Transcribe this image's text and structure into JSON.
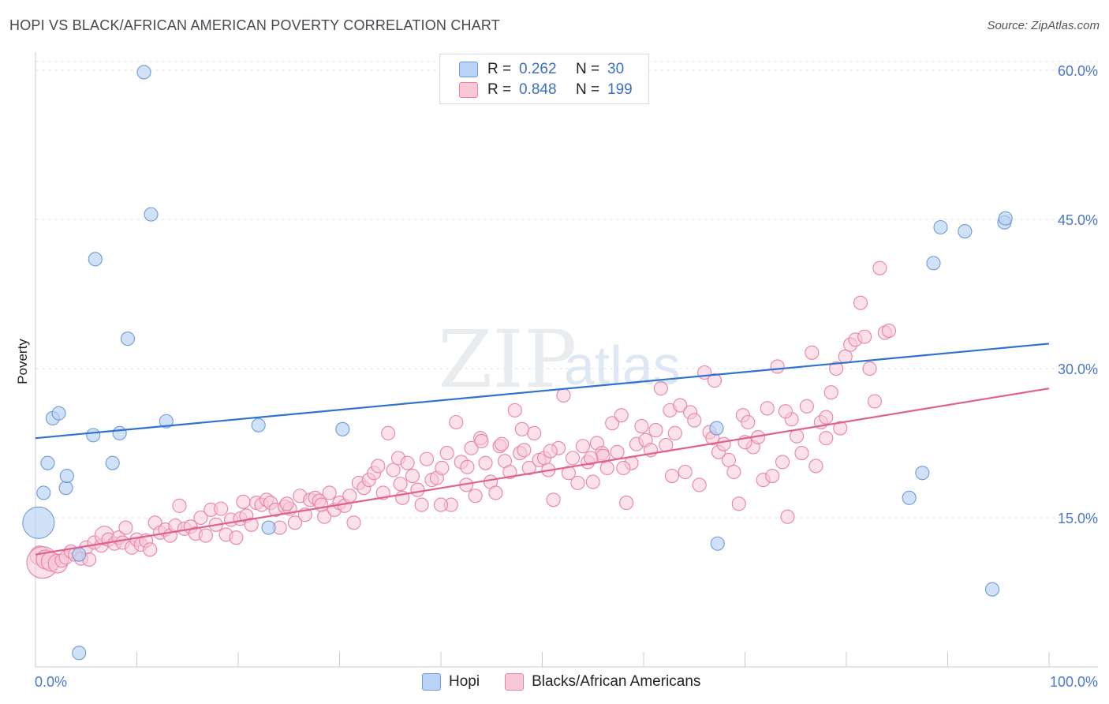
{
  "title": "HOPI VS BLACK/AFRICAN AMERICAN POVERTY CORRELATION CHART",
  "source": "Source: ZipAtlas.com",
  "watermark": {
    "zip": "ZIP",
    "atlas": "atlas"
  },
  "legend": {
    "rows": [
      {
        "r_label": "R =",
        "r_value": "0.262",
        "n_label": "N =",
        "n_value": "30"
      },
      {
        "r_label": "R =",
        "r_value": "0.848",
        "n_label": "N =",
        "n_value": "199"
      }
    ]
  },
  "colors": {
    "hopi_fill": "#b8d3f5",
    "hopi_stroke": "#6b9bd8",
    "hopi_line": "#2f72d0",
    "black_fill": "#f8c8d7",
    "black_stroke": "#e883a5",
    "black_line": "#e0618e",
    "tick_text": "#4a78c8",
    "grid": "#e1e3e6"
  },
  "chart_data": {
    "type": "scatter",
    "title": "HOPI VS BLACK/AFRICAN AMERICAN POVERTY CORRELATION CHART",
    "xlabel": "",
    "ylabel": "Poverty",
    "xlim": [
      0,
      100
    ],
    "ylim": [
      0,
      61.5
    ],
    "x_tick_labels": [
      "0.0%",
      "100.0%"
    ],
    "y_ticks": [
      15,
      30,
      45,
      60
    ],
    "y_tick_labels": [
      "15.0%",
      "30.0%",
      "45.0%",
      "60.0%"
    ],
    "grid": true,
    "legend_position": "bottom-center",
    "series": [
      {
        "name": "Hopi",
        "r": 0.262,
        "n": 30,
        "trend": {
          "x": [
            0,
            100
          ],
          "y": [
            23.0,
            32.5
          ]
        },
        "points": [
          [
            0.3,
            14.5,
            3
          ],
          [
            0.8,
            17.5,
            1
          ],
          [
            1.2,
            20.5,
            1
          ],
          [
            1.7,
            25.0,
            1
          ],
          [
            2.3,
            25.5,
            1
          ],
          [
            3.0,
            18.0,
            1
          ],
          [
            3.1,
            19.2,
            1
          ],
          [
            4.3,
            11.3,
            1
          ],
          [
            5.7,
            23.3,
            1
          ],
          [
            5.9,
            41.0,
            1
          ],
          [
            7.6,
            20.5,
            1
          ],
          [
            8.3,
            23.5,
            1
          ],
          [
            9.1,
            33.0,
            1
          ],
          [
            10.7,
            59.8,
            1
          ],
          [
            11.4,
            45.5,
            1
          ],
          [
            12.9,
            24.7,
            1
          ],
          [
            22.0,
            24.3,
            1
          ],
          [
            23.0,
            14.0,
            1
          ],
          [
            30.3,
            23.9,
            1
          ],
          [
            67.2,
            24.0,
            1
          ],
          [
            67.3,
            12.4,
            1
          ],
          [
            86.2,
            17.0,
            1
          ],
          [
            87.5,
            19.5,
            1
          ],
          [
            88.6,
            40.6,
            1
          ],
          [
            89.3,
            44.2,
            1
          ],
          [
            91.7,
            43.8,
            1
          ],
          [
            94.4,
            7.8,
            1
          ],
          [
            95.6,
            44.7,
            1
          ],
          [
            95.7,
            45.1,
            1
          ],
          [
            4.3,
            1.4,
            1
          ]
        ]
      },
      {
        "name": "Blacks/African Americans",
        "r": 0.848,
        "n": 199,
        "trend": {
          "x": [
            0,
            100
          ],
          "y": [
            11.3,
            28.0
          ]
        },
        "points": [
          [
            0.4,
            11.2,
            2
          ],
          [
            0.7,
            10.5,
            3
          ],
          [
            1.0,
            10.8,
            2
          ],
          [
            1.5,
            10.6,
            2
          ],
          [
            2.2,
            10.4,
            2
          ],
          [
            2.6,
            10.7,
            1
          ],
          [
            3.0,
            11.0,
            1
          ],
          [
            3.5,
            11.6,
            1
          ],
          [
            3.9,
            11.3,
            1
          ],
          [
            4.5,
            10.9,
            1
          ],
          [
            5.0,
            12.0,
            1
          ],
          [
            5.3,
            10.8,
            1
          ],
          [
            5.8,
            12.5,
            1
          ],
          [
            6.5,
            12.2,
            1
          ],
          [
            6.8,
            13.2,
            2
          ],
          [
            7.2,
            12.8,
            1
          ],
          [
            7.8,
            12.4,
            1
          ],
          [
            8.2,
            13.0,
            1
          ],
          [
            8.6,
            12.5,
            1
          ],
          [
            8.9,
            14.0,
            1
          ],
          [
            9.5,
            12.0,
            1
          ],
          [
            10.0,
            12.8,
            1
          ],
          [
            10.4,
            12.3,
            1
          ],
          [
            10.9,
            12.7,
            1
          ],
          [
            11.3,
            11.8,
            1
          ],
          [
            11.8,
            14.5,
            1
          ],
          [
            12.3,
            13.5,
            1
          ],
          [
            12.8,
            13.8,
            1
          ],
          [
            13.3,
            13.2,
            1
          ],
          [
            13.8,
            14.2,
            1
          ],
          [
            14.2,
            16.2,
            1
          ],
          [
            14.7,
            13.9,
            1
          ],
          [
            15.3,
            14.1,
            1
          ],
          [
            15.8,
            13.4,
            1
          ],
          [
            16.3,
            15.0,
            1
          ],
          [
            16.8,
            13.2,
            1
          ],
          [
            17.3,
            15.8,
            1
          ],
          [
            17.8,
            14.3,
            1
          ],
          [
            18.3,
            15.9,
            1
          ],
          [
            18.8,
            13.3,
            1
          ],
          [
            19.3,
            14.8,
            1
          ],
          [
            19.8,
            13.0,
            1
          ],
          [
            20.2,
            14.9,
            1
          ],
          [
            20.8,
            15.2,
            1
          ],
          [
            21.3,
            14.3,
            1
          ],
          [
            21.8,
            16.5,
            1
          ],
          [
            22.3,
            16.3,
            1
          ],
          [
            22.8,
            16.8,
            1
          ],
          [
            23.2,
            16.5,
            1
          ],
          [
            23.7,
            15.8,
            1
          ],
          [
            24.1,
            14.0,
            1
          ],
          [
            24.6,
            16.1,
            1
          ],
          [
            25.1,
            15.9,
            1
          ],
          [
            25.6,
            14.5,
            1
          ],
          [
            26.1,
            17.2,
            1
          ],
          [
            26.6,
            15.3,
            1
          ],
          [
            27.1,
            16.8,
            1
          ],
          [
            27.6,
            17.0,
            1
          ],
          [
            28.0,
            16.7,
            1
          ],
          [
            28.5,
            15.1,
            1
          ],
          [
            29.0,
            17.5,
            1
          ],
          [
            29.5,
            15.8,
            1
          ],
          [
            30.0,
            16.5,
            1
          ],
          [
            30.5,
            16.2,
            1
          ],
          [
            31.0,
            17.2,
            1
          ],
          [
            31.4,
            14.5,
            1
          ],
          [
            31.9,
            18.5,
            1
          ],
          [
            32.4,
            18.0,
            1
          ],
          [
            32.9,
            18.8,
            1
          ],
          [
            33.4,
            19.5,
            1
          ],
          [
            33.8,
            20.2,
            1
          ],
          [
            34.3,
            17.5,
            1
          ],
          [
            34.8,
            23.5,
            1
          ],
          [
            35.3,
            19.8,
            1
          ],
          [
            35.8,
            21.0,
            1
          ],
          [
            36.2,
            17.0,
            1
          ],
          [
            36.7,
            20.5,
            1
          ],
          [
            37.2,
            19.2,
            1
          ],
          [
            37.7,
            17.8,
            1
          ],
          [
            38.1,
            16.3,
            1
          ],
          [
            38.6,
            20.9,
            1
          ],
          [
            39.1,
            18.8,
            1
          ],
          [
            39.6,
            19.0,
            1
          ],
          [
            40.1,
            20.0,
            1
          ],
          [
            40.6,
            21.5,
            1
          ],
          [
            41.0,
            16.3,
            1
          ],
          [
            41.5,
            24.6,
            1
          ],
          [
            42.0,
            20.6,
            1
          ],
          [
            42.5,
            18.3,
            1
          ],
          [
            43.0,
            22.0,
            1
          ],
          [
            43.4,
            17.2,
            1
          ],
          [
            43.9,
            23.0,
            1
          ],
          [
            44.4,
            20.5,
            1
          ],
          [
            44.9,
            18.6,
            1
          ],
          [
            45.4,
            17.5,
            1
          ],
          [
            45.8,
            22.2,
            1
          ],
          [
            46.3,
            20.7,
            1
          ],
          [
            46.8,
            19.6,
            1
          ],
          [
            47.3,
            25.8,
            1
          ],
          [
            47.8,
            21.5,
            1
          ],
          [
            48.2,
            21.8,
            1
          ],
          [
            48.7,
            20.0,
            1
          ],
          [
            49.2,
            23.5,
            1
          ],
          [
            49.7,
            20.8,
            1
          ],
          [
            50.2,
            21.0,
            1
          ],
          [
            50.6,
            19.8,
            1
          ],
          [
            51.1,
            16.8,
            1
          ],
          [
            51.6,
            22.0,
            1
          ],
          [
            52.1,
            27.3,
            1
          ],
          [
            52.6,
            19.5,
            1
          ],
          [
            53.0,
            21.0,
            1
          ],
          [
            53.5,
            18.5,
            1
          ],
          [
            54.0,
            22.2,
            1
          ],
          [
            54.5,
            20.6,
            1
          ],
          [
            55.0,
            18.6,
            1
          ],
          [
            55.4,
            22.5,
            1
          ],
          [
            55.9,
            21.5,
            1
          ],
          [
            56.4,
            20.0,
            1
          ],
          [
            56.9,
            24.5,
            1
          ],
          [
            57.4,
            21.6,
            1
          ],
          [
            57.8,
            25.3,
            1
          ],
          [
            58.3,
            16.5,
            1
          ],
          [
            58.8,
            20.5,
            1
          ],
          [
            59.3,
            22.4,
            1
          ],
          [
            59.8,
            24.2,
            1
          ],
          [
            60.2,
            22.8,
            1
          ],
          [
            60.7,
            21.8,
            1
          ],
          [
            61.2,
            23.8,
            1
          ],
          [
            61.7,
            28.0,
            1
          ],
          [
            62.2,
            22.3,
            1
          ],
          [
            62.6,
            25.8,
            1
          ],
          [
            63.1,
            23.5,
            1
          ],
          [
            63.6,
            26.3,
            1
          ],
          [
            64.1,
            19.6,
            1
          ],
          [
            64.6,
            25.6,
            1
          ],
          [
            65.0,
            24.8,
            1
          ],
          [
            65.5,
            18.3,
            1
          ],
          [
            66.0,
            29.6,
            1
          ],
          [
            66.5,
            23.6,
            1
          ],
          [
            67.0,
            28.8,
            1
          ],
          [
            67.4,
            21.6,
            1
          ],
          [
            67.9,
            22.4,
            1
          ],
          [
            68.4,
            20.8,
            1
          ],
          [
            68.9,
            19.6,
            1
          ],
          [
            69.4,
            16.4,
            1
          ],
          [
            69.8,
            25.3,
            1
          ],
          [
            70.3,
            24.6,
            1
          ],
          [
            70.8,
            22.1,
            1
          ],
          [
            71.3,
            23.1,
            1
          ],
          [
            71.8,
            18.8,
            1
          ],
          [
            72.2,
            26.0,
            1
          ],
          [
            72.7,
            19.2,
            1
          ],
          [
            73.2,
            30.2,
            1
          ],
          [
            73.7,
            20.6,
            1
          ],
          [
            74.2,
            15.1,
            1
          ],
          [
            74.6,
            24.9,
            1
          ],
          [
            75.1,
            23.2,
            1
          ],
          [
            75.6,
            21.5,
            1
          ],
          [
            76.1,
            26.2,
            1
          ],
          [
            76.6,
            31.6,
            1
          ],
          [
            77.0,
            20.2,
            1
          ],
          [
            77.5,
            24.6,
            1
          ],
          [
            78.0,
            23.0,
            1
          ],
          [
            78.5,
            27.6,
            1
          ],
          [
            79.0,
            30.0,
            1
          ],
          [
            79.4,
            24.0,
            1
          ],
          [
            79.9,
            31.2,
            1
          ],
          [
            80.4,
            32.4,
            1
          ],
          [
            80.9,
            32.9,
            1
          ],
          [
            81.4,
            36.6,
            1
          ],
          [
            81.8,
            33.2,
            1
          ],
          [
            82.3,
            30.0,
            1
          ],
          [
            82.8,
            26.7,
            1
          ],
          [
            83.3,
            40.1,
            1
          ],
          [
            83.8,
            33.6,
            1
          ],
          [
            84.2,
            33.8,
            1
          ],
          [
            56.0,
            21.2,
            1
          ],
          [
            48.0,
            23.9,
            1
          ],
          [
            44.0,
            22.7,
            1
          ],
          [
            40.0,
            16.3,
            1
          ],
          [
            36.0,
            18.4,
            1
          ],
          [
            28.2,
            16.3,
            1
          ],
          [
            24.8,
            16.4,
            1
          ],
          [
            20.5,
            16.6,
            1
          ],
          [
            42.6,
            20.1,
            1
          ],
          [
            46.0,
            22.4,
            1
          ],
          [
            50.8,
            21.7,
            1
          ],
          [
            54.8,
            21.0,
            1
          ],
          [
            58.0,
            20.0,
            1
          ],
          [
            62.8,
            19.2,
            1
          ],
          [
            66.8,
            23.0,
            1
          ],
          [
            70.0,
            22.6,
            1
          ],
          [
            74.0,
            25.7,
            1
          ],
          [
            78.0,
            25.1,
            1
          ]
        ]
      }
    ]
  },
  "bottom_legend": [
    "Hopi",
    "Blacks/African Americans"
  ]
}
